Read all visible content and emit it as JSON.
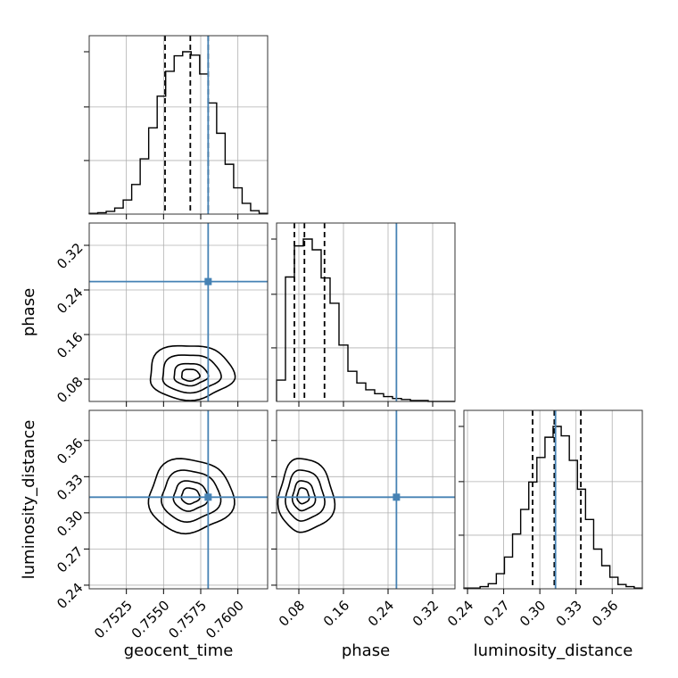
{
  "chart_data": {
    "type": "corner",
    "parameters": [
      {
        "name": "geocent_time",
        "range": [
          0.75,
          0.762
        ],
        "ticks": [
          0.7525,
          0.755,
          0.7575,
          0.76
        ],
        "tick_labels": [
          "0.7525",
          "0.7550",
          "0.7575",
          "0.7600"
        ],
        "truth": 0.758,
        "quantiles": [
          0.7551,
          0.7568,
          0.758
        ]
      },
      {
        "name": "phase",
        "range": [
          0.04,
          0.36
        ],
        "ticks": [
          0.08,
          0.16,
          0.24,
          0.32
        ],
        "tick_labels": [
          "0.08",
          "0.16",
          "0.24",
          "0.32"
        ],
        "truth": 0.255,
        "quantiles": [
          0.072,
          0.09,
          0.126
        ]
      },
      {
        "name": "luminosity_distance",
        "range": [
          0.237,
          0.385
        ],
        "ticks": [
          0.24,
          0.27,
          0.3,
          0.33,
          0.36
        ],
        "tick_labels": [
          "0.24",
          "0.27",
          "0.30",
          "0.33",
          "0.36"
        ],
        "truth": 0.313,
        "quantiles": [
          0.294,
          0.312,
          0.334
        ]
      }
    ],
    "histograms": [
      [
        1,
        2,
        4,
        9,
        21,
        44,
        82,
        128,
        175,
        212,
        235,
        241,
        236,
        208,
        165,
        120,
        74,
        39,
        16,
        5,
        1
      ],
      [
        22,
        128,
        160,
        167,
        156,
        127,
        101,
        58,
        31,
        19,
        12,
        8,
        5,
        3,
        2,
        1,
        1,
        0,
        0,
        0
      ],
      [
        1,
        1,
        3,
        7,
        21,
        44,
        76,
        110,
        148,
        182,
        210,
        225,
        212,
        178,
        138,
        96,
        55,
        32,
        16,
        6,
        3,
        1
      ]
    ],
    "truth_color": "#4682b4",
    "line_color": "#000000",
    "grid": true,
    "scatter_color": "#8c8c8c"
  }
}
